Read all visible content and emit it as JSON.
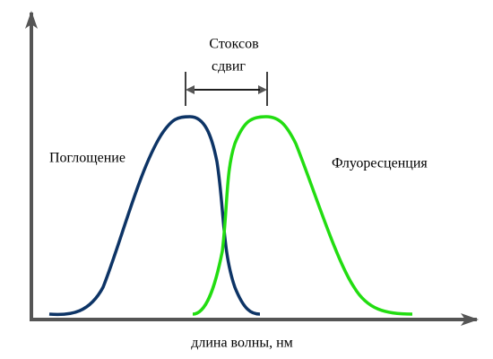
{
  "shift_label": [
    "Стоксов",
    "сдвиг"
  ],
  "absorption_label": "Поглощение",
  "fluorescence_label": "Флуоресценция",
  "x_axis_label": "длина волны, нм"
}
